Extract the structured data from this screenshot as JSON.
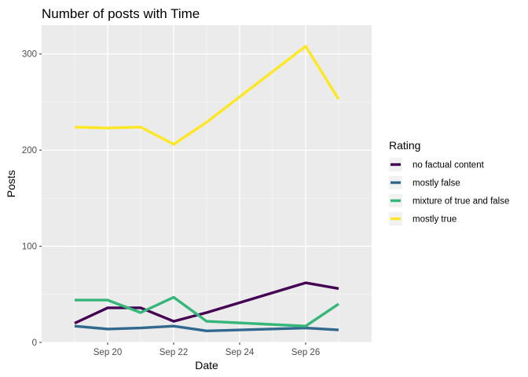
{
  "chart_data": {
    "type": "line",
    "title": "Number of posts with Time",
    "xlabel": "Date",
    "ylabel": "Posts",
    "x": [
      "2023-09-19",
      "2023-09-20",
      "2023-09-21",
      "2023-09-22",
      "2023-09-23",
      "2023-09-26",
      "2023-09-27"
    ],
    "xticks": [
      "Sep 20",
      "Sep 22",
      "Sep 24",
      "Sep 26"
    ],
    "xtick_dates": [
      "2023-09-20",
      "2023-09-22",
      "2023-09-24",
      "2023-09-26"
    ],
    "xlim": [
      "2023-09-18",
      "2023-09-28"
    ],
    "yticks": [
      0,
      100,
      200,
      300
    ],
    "ylim": [
      0,
      330
    ],
    "grid": true,
    "legend": {
      "title": "Rating",
      "position": "right"
    },
    "series": [
      {
        "name": "no factual content",
        "color": "#440154",
        "values": [
          20,
          36,
          36,
          22,
          31,
          62,
          56
        ]
      },
      {
        "name": "mostly false",
        "color": "#31688e",
        "values": [
          17,
          14,
          15,
          17,
          12,
          15,
          13
        ]
      },
      {
        "name": "mixture of true and false",
        "color": "#35b779",
        "values": [
          44,
          44,
          31,
          47,
          22,
          17,
          40
        ]
      },
      {
        "name": "mostly true",
        "color": "#fde725",
        "values": [
          224,
          223,
          224,
          206,
          229,
          308,
          253
        ]
      }
    ],
    "colors": {
      "panel_background": "#ebebeb",
      "grid_major": "#ffffff",
      "grid_minor": "#f5f5f5",
      "tick_text": "#4d4d4d",
      "legend_key_background": "#f2f2f2"
    }
  }
}
